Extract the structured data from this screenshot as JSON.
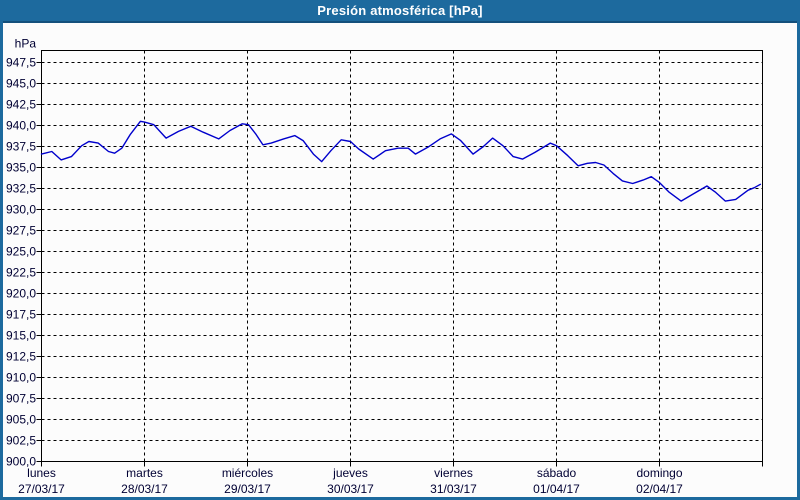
{
  "window": {
    "title": "Presión atmosférica [hPa]",
    "title_bar_color": "#1d6a9e",
    "title_bar_edge_color": "#14507c",
    "title_text_color": "#ffffff",
    "frame_color": "#1d6a9e",
    "background_color": "#fcfcfc"
  },
  "chart_data": {
    "type": "line",
    "title": "Presión atmosférica [hPa]",
    "ylabel": "hPa",
    "ylim": [
      900.0,
      949.0
    ],
    "ytick_step": 2.5,
    "ytick_labels": [
      "947,5",
      "945,0",
      "942,5",
      "940,0",
      "937,5",
      "935,0",
      "932,5",
      "930,0",
      "927,5",
      "925,0",
      "922,5",
      "920,0",
      "917,5",
      "915,0",
      "912,5",
      "910,0",
      "907,5",
      "905,0",
      "902,5",
      "900,0"
    ],
    "ytick_values": [
      947.5,
      945.0,
      942.5,
      940.0,
      937.5,
      935.0,
      932.5,
      930.0,
      927.5,
      925.0,
      922.5,
      920.0,
      917.5,
      915.0,
      912.5,
      910.0,
      907.5,
      905.0,
      902.5,
      900.0
    ],
    "grid": "dashed",
    "grid_color": "#000000",
    "plot_border_color": "#000000",
    "text_color": "#000033",
    "legend": "none",
    "x_axis": {
      "unit": "days",
      "range_days": 7,
      "days": [
        {
          "name": "lunes",
          "date": "27/03/17"
        },
        {
          "name": "martes",
          "date": "28/03/17"
        },
        {
          "name": "miércoles",
          "date": "29/03/17"
        },
        {
          "name": "jueves",
          "date": "30/03/17"
        },
        {
          "name": "viernes",
          "date": "31/03/17"
        },
        {
          "name": "sábado",
          "date": "01/04/17"
        },
        {
          "name": "domingo",
          "date": "02/04/17"
        }
      ]
    },
    "series": [
      {
        "name": "Presión atmosférica",
        "color": "#0000cc",
        "x_unit": "days since lunes 27/03/17 00:00",
        "t_days": [
          0.0,
          0.1,
          0.19,
          0.29,
          0.39,
          0.46,
          0.55,
          0.65,
          0.71,
          0.78,
          0.86,
          0.96,
          1.0,
          1.09,
          1.21,
          1.33,
          1.45,
          1.57,
          1.72,
          1.83,
          1.95,
          2.01,
          2.08,
          2.15,
          2.23,
          2.35,
          2.46,
          2.54,
          2.64,
          2.72,
          2.81,
          2.91,
          3.0,
          3.08,
          3.22,
          3.34,
          3.46,
          3.56,
          3.63,
          3.75,
          3.87,
          3.98,
          4.07,
          4.19,
          4.29,
          4.38,
          4.48,
          4.58,
          4.67,
          4.79,
          4.94,
          5.0,
          5.11,
          5.21,
          5.3,
          5.38,
          5.46,
          5.55,
          5.64,
          5.74,
          5.84,
          5.92,
          6.0,
          6.09,
          6.21,
          6.32,
          6.46,
          6.54,
          6.64,
          6.74,
          6.86,
          6.92,
          6.98
        ],
        "values": [
          936.6,
          936.9,
          935.9,
          936.3,
          937.6,
          938.1,
          937.9,
          936.9,
          936.7,
          937.3,
          938.9,
          940.5,
          940.4,
          940.1,
          938.5,
          939.3,
          939.9,
          939.2,
          938.4,
          939.4,
          940.2,
          940.1,
          939.0,
          937.7,
          937.9,
          938.4,
          938.8,
          938.2,
          936.6,
          935.7,
          937.0,
          938.3,
          938.1,
          937.2,
          936.0,
          937.0,
          937.3,
          937.3,
          936.6,
          937.4,
          938.4,
          939.0,
          938.2,
          936.6,
          937.5,
          938.5,
          937.6,
          936.3,
          936.0,
          936.8,
          937.9,
          937.6,
          936.4,
          935.2,
          935.5,
          935.6,
          935.3,
          934.3,
          933.4,
          933.1,
          933.5,
          933.9,
          933.2,
          932.1,
          931.0,
          931.8,
          932.8,
          932.1,
          931.0,
          931.2,
          932.3,
          932.6,
          933.0
        ]
      }
    ]
  }
}
